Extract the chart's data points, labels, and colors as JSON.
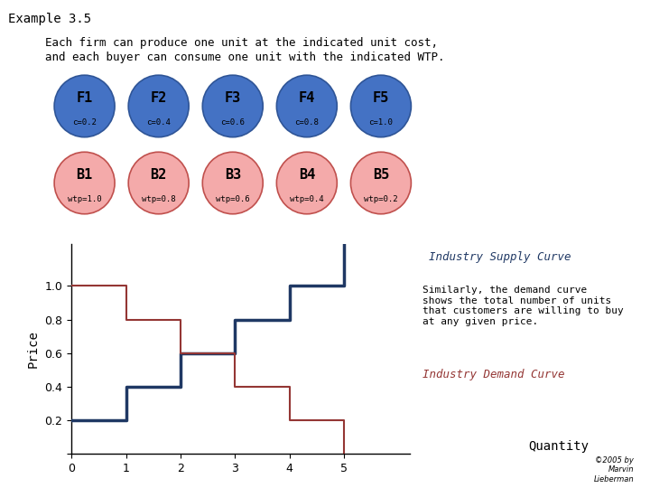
{
  "title": "Example 3.5",
  "subtitle_line1": "Each firm can produce one unit at the indicated unit cost,",
  "subtitle_line2": "and each buyer can consume one unit with the indicated WTP.",
  "firms": [
    {
      "label": "F1",
      "cost": "c=0.2"
    },
    {
      "label": "F2",
      "cost": "c=0.4"
    },
    {
      "label": "F3",
      "cost": "c=0.6"
    },
    {
      "label": "F4",
      "cost": "c=0.8"
    },
    {
      "label": "F5",
      "cost": "c=1.0"
    }
  ],
  "buyers": [
    {
      "label": "B1",
      "wtp": "wtp=1.0"
    },
    {
      "label": "B2",
      "wtp": "wtp=0.8"
    },
    {
      "label": "B3",
      "wtp": "wtp=0.6"
    },
    {
      "label": "B4",
      "wtp": "wtp=0.4"
    },
    {
      "label": "B5",
      "wtp": "wtp=0.2"
    }
  ],
  "firm_color": "#4472C4",
  "buyer_color": "#F4AAAA",
  "firm_edge_color": "#2F5597",
  "buyer_edge_color": "#C0504D",
  "supply_curve_x": [
    0,
    1,
    1,
    2,
    2,
    3,
    3,
    4,
    4,
    5,
    5
  ],
  "supply_curve_y": [
    0.2,
    0.2,
    0.4,
    0.4,
    0.6,
    0.6,
    0.8,
    0.8,
    1.0,
    1.0,
    1.25
  ],
  "demand_curve_x": [
    0,
    1,
    1,
    2,
    2,
    3,
    3,
    4,
    4,
    5,
    5
  ],
  "demand_curve_y": [
    1.0,
    1.0,
    0.8,
    0.8,
    0.6,
    0.6,
    0.4,
    0.4,
    0.2,
    0.2,
    0.0
  ],
  "supply_color": "#1F3864",
  "demand_color": "#943634",
  "supply_label": "Industry Supply Curve",
  "demand_label": "Industry Demand Curve",
  "annotation_text": "Similarly, the demand curve\nshows the total number of units\nthat customers are willing to buy\nat any given price.",
  "xlabel": "Quantity",
  "ylabel": "Price",
  "xlim": [
    0,
    6.2
  ],
  "ylim": [
    0,
    1.25
  ],
  "xticks": [
    0,
    1,
    2,
    3,
    4,
    5
  ],
  "yticks": [
    0,
    0.2,
    0.4,
    0.6,
    0.8,
    1.0
  ],
  "copyright_text": "©2005 by\nMarvin\nLieberman",
  "background_color": "#FFFFFF"
}
